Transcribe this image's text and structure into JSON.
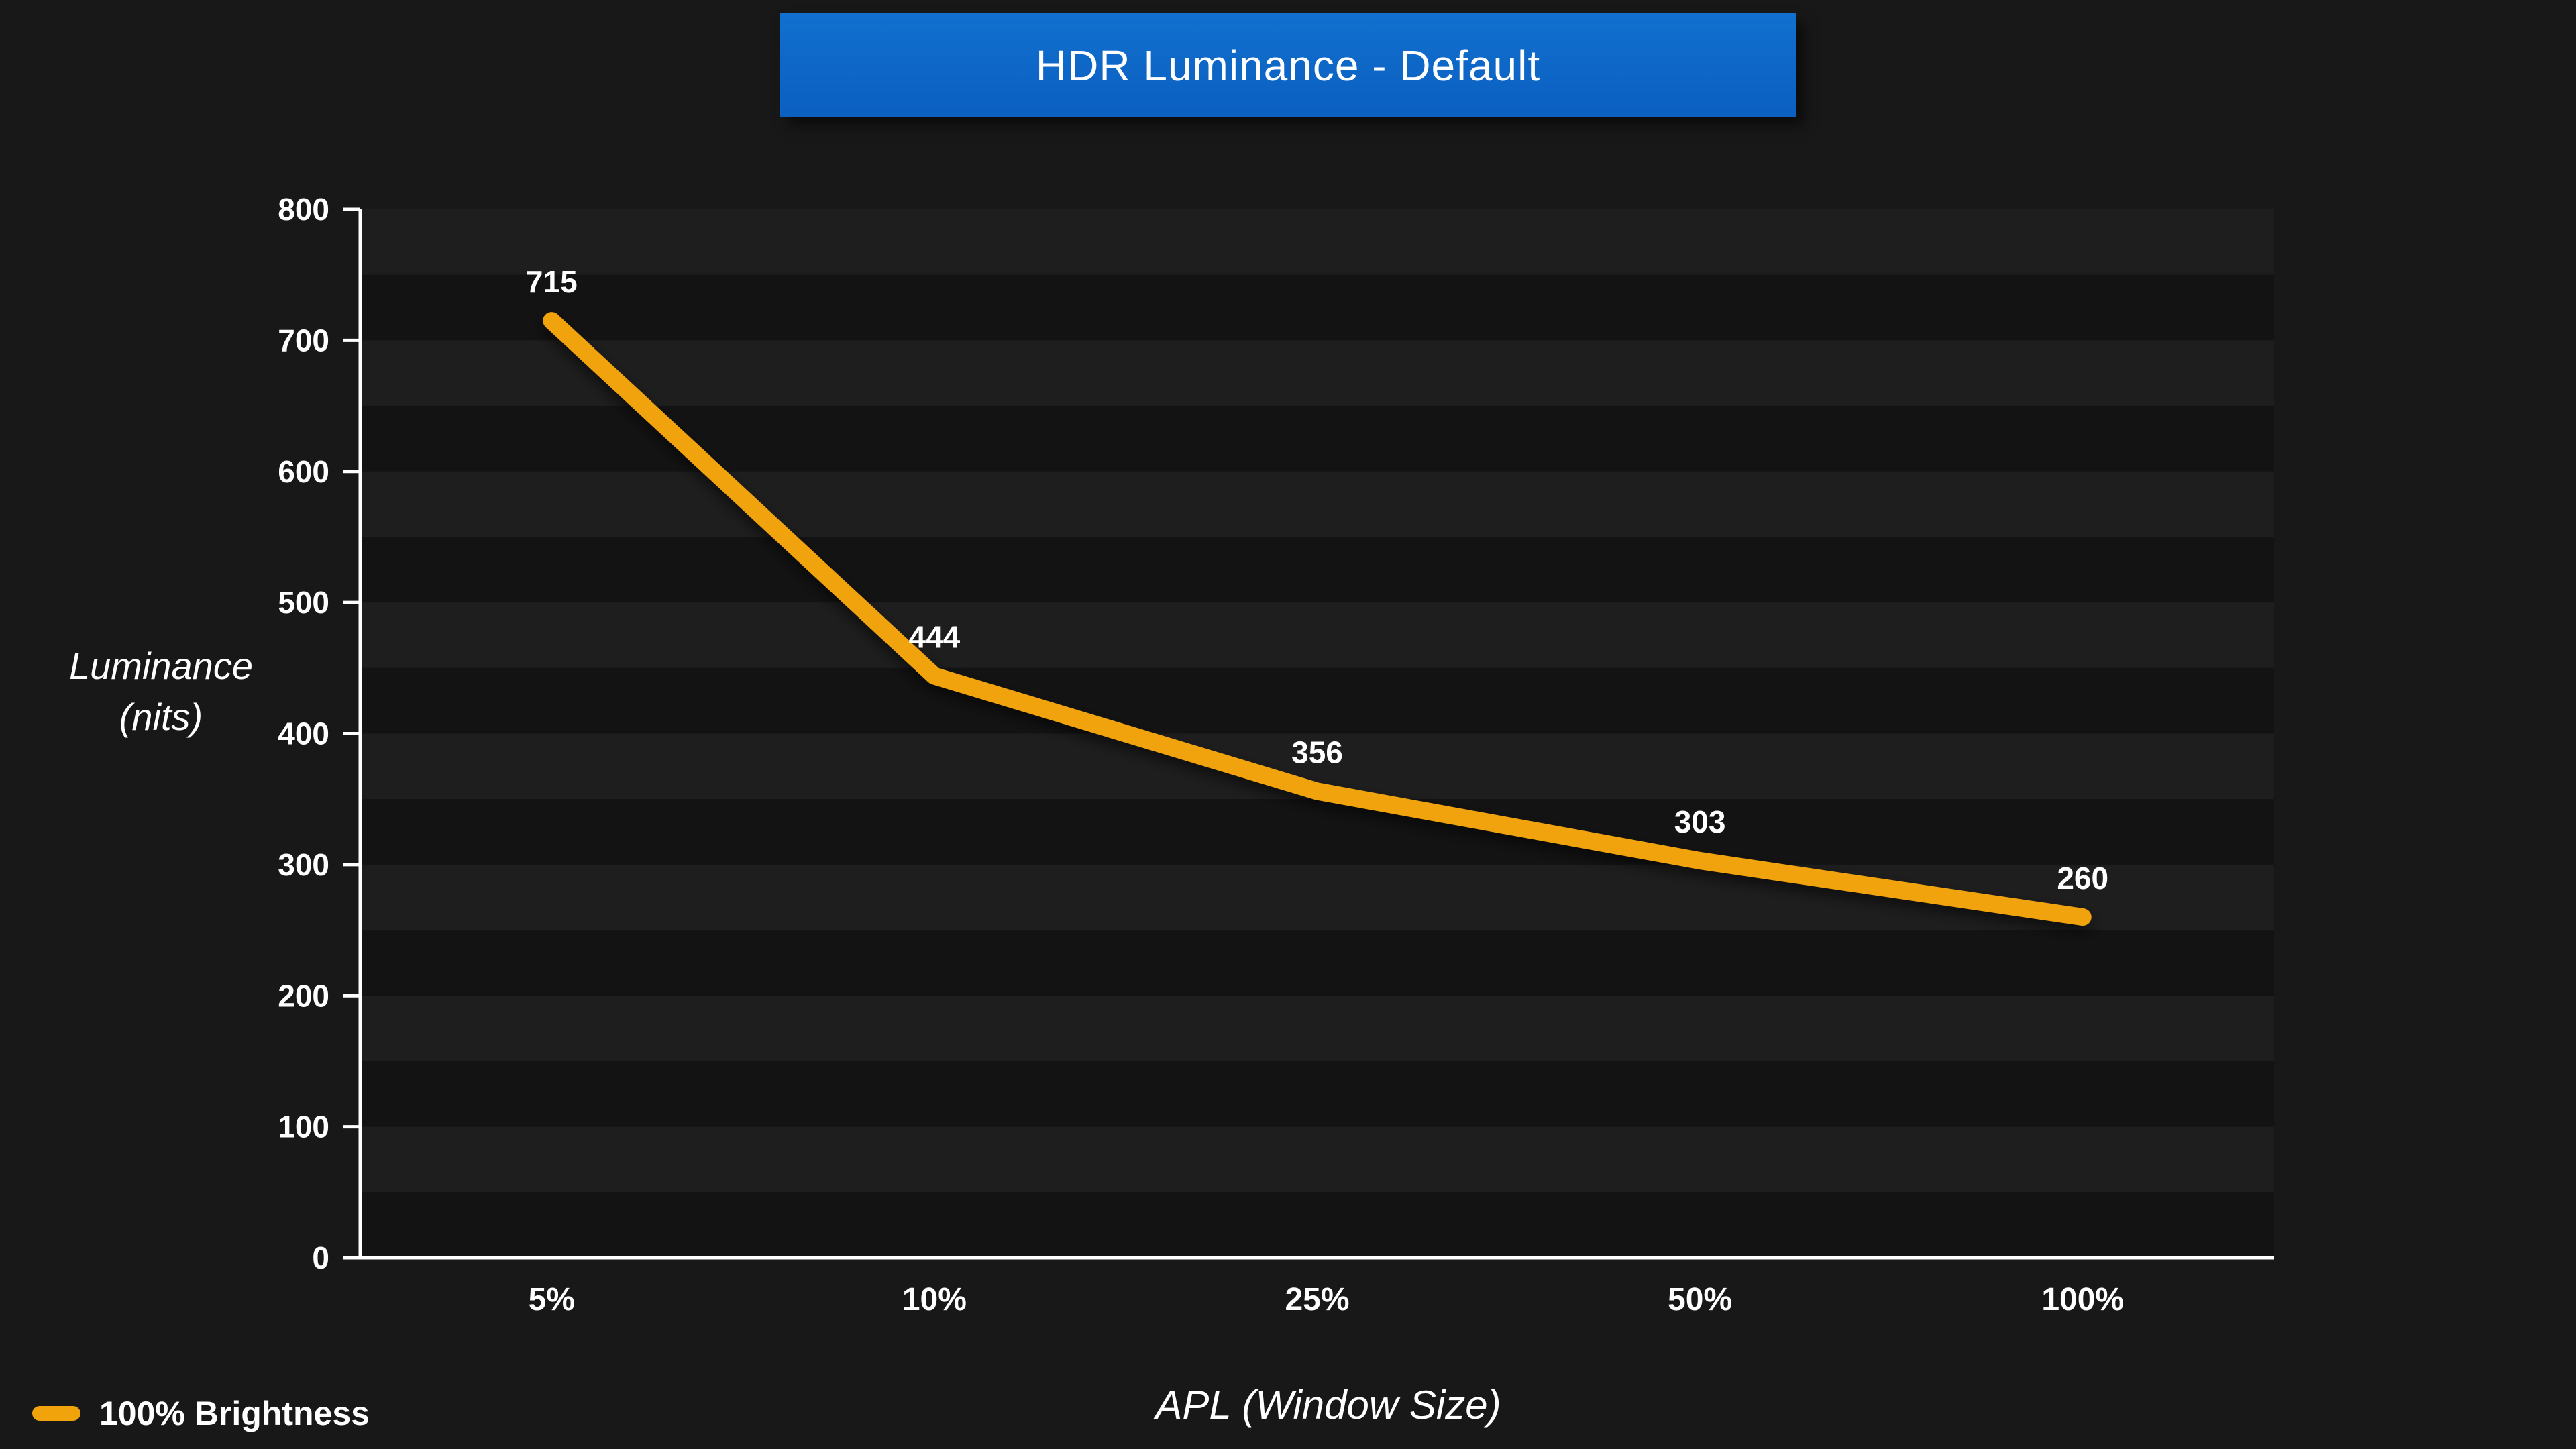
{
  "title": "HDR Luminance - Default",
  "colors": {
    "accent": "#F0A30A",
    "title_bg": "#0B63C5",
    "background": "#181818",
    "band_light": "#1E1E1E",
    "band_dark": "#131313",
    "axis": "#FFFFFF"
  },
  "axis": {
    "x_title": "APL (Window Size)",
    "y_title_line1": "Luminance",
    "y_title_line2": "(nits)"
  },
  "legend": {
    "label": "100% Brightness"
  },
  "chart_data": {
    "type": "line",
    "title": "HDR Luminance - Default",
    "categories": [
      "5%",
      "10%",
      "25%",
      "50%",
      "100%"
    ],
    "series": [
      {
        "name": "100% Brightness",
        "values": [
          715,
          444,
          356,
          303,
          260
        ]
      }
    ],
    "xlabel": "APL (Window Size)",
    "ylabel": "Luminance (nits)",
    "ylim": [
      0,
      800
    ],
    "ytick_step": 100,
    "band_step": 50,
    "grid": "horizontal-bands",
    "legend_position": "bottom-left",
    "data_labels": true
  }
}
